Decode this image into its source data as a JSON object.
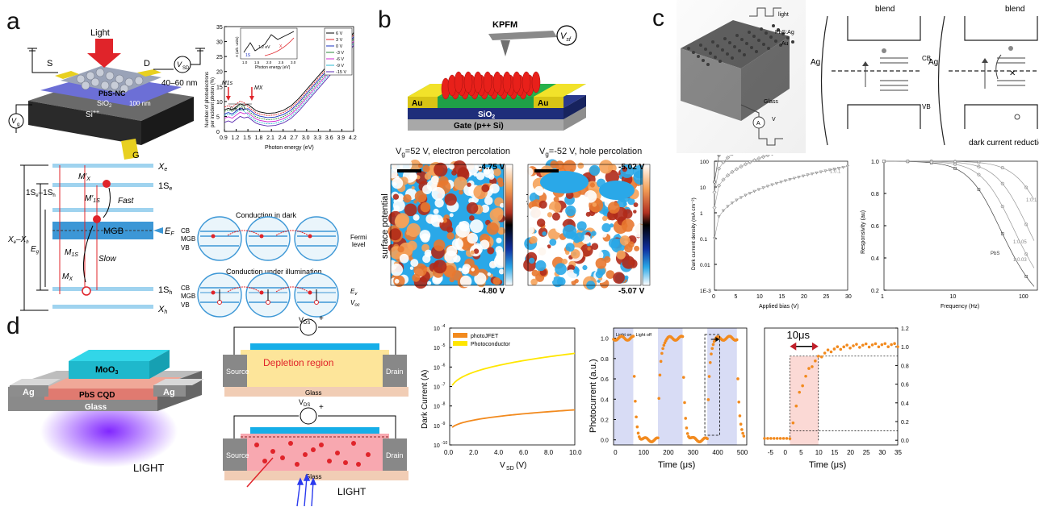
{
  "panels": {
    "a": "a",
    "b": "b",
    "c": "c",
    "d": "d"
  },
  "panel_a": {
    "device": {
      "light": "Light",
      "s": "S",
      "d": "D",
      "vg": "V",
      "vg_sub": "g",
      "vsd": "V",
      "vsd_sub": "SD",
      "thickness": "40–60 nm",
      "pbs_nc": "PbS-NC",
      "sio2": "SiO",
      "sio2_sub": "2",
      "nm100": "100 nm",
      "si": "Si",
      "si_sup": "++",
      "g": "G"
    },
    "spectrum": {
      "ylabel_1": "Number of photoelectrons",
      "ylabel_2": "per incident photon (%)",
      "xlabel": "Photon energy (eV)",
      "xticks": [
        "0.9",
        "1.2",
        "1.5",
        "1.8",
        "2.1",
        "2.4",
        "2.7",
        "3.0",
        "3.3",
        "3.6",
        "3.9",
        "4.2"
      ],
      "yticks": [
        "0",
        "5",
        "10",
        "15",
        "20",
        "25",
        "30",
        "35"
      ],
      "legend": [
        "6 V",
        "3 V",
        "0 V",
        "-3 V",
        "-6 V",
        "-9 V",
        "-15 V"
      ],
      "m1s": "M",
      "m1s_sub": "1s",
      "mx": "M",
      "mx_sub": "X",
      "gap": "0.6 eV",
      "inset_xlabel": "Photon energy (eV)",
      "inset_ylabel": "A (arb. units)",
      "inset_gap": "1.2 eV",
      "inset_1s": "1S",
      "inset_xx": "X",
      "inset_ticks": [
        "1.0",
        "1.5",
        "2.0",
        "2.5",
        "3.0"
      ]
    },
    "energy": {
      "xe": "X",
      "xe_sub": "e",
      "mpx": "M′",
      "mpx_sub": "X",
      "ones_e": "1S",
      "ones_e_sub": "e",
      "mp1s": "M′",
      "mp1s_sub": "1S",
      "fast": "Fast",
      "eg": "E",
      "eg_sub": "g",
      "mgb": "MGB",
      "ef": "E",
      "ef_sub": "F",
      "m1s": "M",
      "m1s_sub": "1S",
      "slow": "Slow",
      "mx": "M",
      "mx_sub": "X",
      "ones_h": "1S",
      "ones_h_sub": "h",
      "xh": "X",
      "xh_sub": "h",
      "gap_label": "1S",
      "gap_label2": "–1S",
      "xexh": "X",
      "xexh2": "–X"
    },
    "conduction": {
      "dark_title": "Conduction in dark",
      "illum_title": "Conduction under illumination",
      "cb": "CB",
      "mgb": "MGB",
      "vb": "VB",
      "fermi_1": "Fermi",
      "fermi_2": "level",
      "ev": "E",
      "ev_sub": "v",
      "voc": "V",
      "voc_sub": "oc"
    }
  },
  "panel_b": {
    "kpfm": "KPFM",
    "vsf": "V",
    "vsf_sub": "sf",
    "au_left": "Au",
    "au_right": "Au",
    "sio2": "SiO",
    "sio2_sub": "2",
    "gate": "Gate (p++ Si)",
    "map1_title": "V",
    "map1_title_sub": "g",
    "map1_title_rest": "=52 V, electron percolation",
    "map2_title": "V",
    "map2_title_sub": "g",
    "map2_title_rest": "=-52 V, hole percolation",
    "ylabel": "surface potential",
    "map1_max": "-4.75 V",
    "map1_min": "-4.80 V",
    "map2_max": "-5.02 V",
    "map2_min": "-5.07 V"
  },
  "panel_c": {
    "device_labels": {
      "light": "light",
      "pbsag": "PbS:Ag",
      "au": "Au",
      "glass": "Glass",
      "a": "A",
      "v": "V"
    },
    "band1": {
      "blend": "blend",
      "ag": "Ag",
      "cb": "CB",
      "vb": "VB"
    },
    "band2": {
      "blend": "blend",
      "ag": "Ag"
    },
    "caption": "dark current reduction",
    "dark_chart": {
      "ylabel": "Dark current density (mA cm⁻²)",
      "xlabel": "Applied bias (V)",
      "xticks": [
        "0",
        "5",
        "10",
        "15",
        "20",
        "25",
        "30"
      ],
      "yticks": [
        "1E-3",
        "0.01",
        "0.1",
        "1",
        "10",
        "100"
      ],
      "series": [
        "PbS",
        "1:0.03",
        "1:0.05",
        "1:0.1"
      ]
    },
    "resp_chart": {
      "ylabel": "Responsivity (au)",
      "xlabel": "Frequency (Hz)",
      "xticks": [
        "1",
        "10",
        "100"
      ],
      "yticks": [
        "0.2",
        "0.4",
        "0.6",
        "0.8",
        "1.0"
      ],
      "series": [
        "1:0.1",
        "1:0.05",
        "PbS",
        "1:0.03"
      ]
    }
  },
  "panel_d": {
    "device": {
      "moo3": "MoO",
      "moo3_sub": "3",
      "ag_left": "Ag",
      "ag_right": "Ag",
      "pbs": "PbS CQD",
      "glass": "Glass",
      "light": "LIGHT"
    },
    "schematic_top": {
      "vds": "V",
      "vds_sub": "DS",
      "source": "Source",
      "drain": "Drain",
      "depletion": "Depletion region",
      "glass": "Glass"
    },
    "schematic_bot": {
      "vds": "V",
      "vds_sub": "DS",
      "source": "Source",
      "drain": "Drain",
      "glass": "Glass",
      "light": "LIGHT"
    },
    "dark_current": {
      "ylabel": "Dark Current (A)",
      "xlabel": "V",
      "xlabel_sub": "SD",
      "xlabel_rest": " (V)",
      "xticks": [
        "0.0",
        "2.0",
        "4.0",
        "6.0",
        "8.0",
        "10.0"
      ],
      "ytick_exp": [
        "-10",
        "-9",
        "-8",
        "-7",
        "-6",
        "-5",
        "-4"
      ],
      "legend": [
        "photoJFET",
        "Photoconductor"
      ]
    },
    "photocurrent": {
      "ylabel": "Photocurrent (a.u.)",
      "xlabel": "Time  (μs)",
      "xticks": [
        "0",
        "100",
        "200",
        "300",
        "400",
        "500"
      ],
      "yticks": [
        "0.0",
        "0.2",
        "0.4",
        "0.6",
        "0.8",
        "1.0"
      ],
      "light_on": "Light on",
      "light_off": "Light off"
    },
    "zoom": {
      "xlabel": "Time  (μs)",
      "xticks": [
        "-5",
        "0",
        "5",
        "10",
        "15",
        "20",
        "25",
        "30",
        "35"
      ],
      "yticks": [
        "0.0",
        "0.2",
        "0.4",
        "0.6",
        "0.8",
        "1.0",
        "1.2"
      ],
      "annotation": "10μs"
    }
  },
  "colors": {
    "orange": "#f28a1e",
    "yellow": "#ffe600",
    "blue": "#1fa3e0",
    "red": "#e0242a",
    "shade": "#d8dcf5"
  }
}
